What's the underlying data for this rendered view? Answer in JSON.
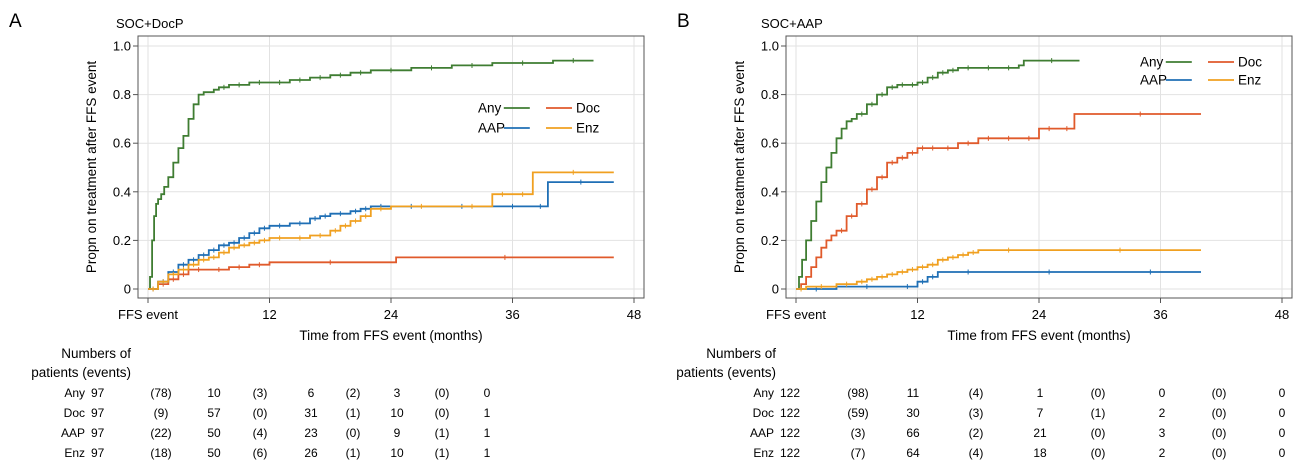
{
  "colors": {
    "Any": "#3f7d32",
    "Doc": "#e05a2b",
    "AAP": "#1f6fb5",
    "Enz": "#f0a020"
  },
  "chart_data": [
    {
      "type": "line",
      "panel_label": "A",
      "title": "SOC+DocP",
      "xlabel": "Time from FFS event (months)",
      "ylabel": "Propn on treatment after FFS event",
      "xlim": [
        0,
        48
      ],
      "ylim": [
        0,
        1.0
      ],
      "xticks": [
        0,
        12,
        24,
        36,
        48
      ],
      "xtick_labels": [
        "FFS event",
        "12",
        "24",
        "36",
        "48"
      ],
      "yticks": [
        0,
        0.2,
        0.4,
        0.6,
        0.8,
        1.0
      ],
      "ytick_labels": [
        "0",
        "0.2",
        "0.4",
        "0.6",
        "0.8",
        "1.0"
      ],
      "grid": true,
      "legend_position": "right",
      "legend_order": [
        "Any",
        "Doc",
        "AAP",
        "Enz"
      ],
      "series": [
        {
          "name": "Any",
          "step": true,
          "x": [
            0,
            0.2,
            0.4,
            0.6,
            0.8,
            1.0,
            1.3,
            1.6,
            2.0,
            2.5,
            3.0,
            3.5,
            4.0,
            4.5,
            5.0,
            5.5,
            6.0,
            6.5,
            7.0,
            8.0,
            10.0,
            12.0,
            14.0,
            16.0,
            18.0,
            20.0,
            22.0,
            26.0,
            30.0,
            34.0,
            40.0,
            44.0
          ],
          "y": [
            0,
            0.05,
            0.2,
            0.3,
            0.35,
            0.37,
            0.39,
            0.42,
            0.46,
            0.52,
            0.58,
            0.63,
            0.7,
            0.76,
            0.8,
            0.81,
            0.81,
            0.82,
            0.83,
            0.84,
            0.85,
            0.85,
            0.86,
            0.87,
            0.88,
            0.89,
            0.9,
            0.91,
            0.92,
            0.93,
            0.94,
            0.94
          ]
        },
        {
          "name": "Doc",
          "step": true,
          "x": [
            0,
            1.0,
            2.0,
            3.0,
            4.0,
            6.0,
            8.0,
            10.0,
            12.0,
            24.0,
            24.5,
            46.0
          ],
          "y": [
            0,
            0.02,
            0.04,
            0.06,
            0.08,
            0.08,
            0.09,
            0.1,
            0.11,
            0.11,
            0.13,
            0.13
          ]
        },
        {
          "name": "AAP",
          "step": true,
          "x": [
            0,
            1.0,
            2.0,
            3.0,
            4.0,
            5.0,
            6.0,
            7.0,
            8.0,
            9.0,
            10.0,
            11.0,
            12.0,
            14.0,
            16.0,
            17.0,
            18.0,
            20.0,
            21.0,
            22.0,
            24.0,
            28.0,
            34.0,
            38.0,
            39.5,
            46.0
          ],
          "y": [
            0,
            0.03,
            0.07,
            0.1,
            0.12,
            0.14,
            0.16,
            0.18,
            0.19,
            0.21,
            0.23,
            0.25,
            0.26,
            0.27,
            0.29,
            0.3,
            0.31,
            0.32,
            0.33,
            0.34,
            0.34,
            0.34,
            0.34,
            0.34,
            0.44,
            0.44
          ]
        },
        {
          "name": "Enz",
          "step": true,
          "x": [
            0,
            1.0,
            2.0,
            3.0,
            4.0,
            5.0,
            6.0,
            7.0,
            8.0,
            9.0,
            10.0,
            11.0,
            12.0,
            14.0,
            16.0,
            18.0,
            19.0,
            20.0,
            21.0,
            22.0,
            24.0,
            30.0,
            34.0,
            36.0,
            38.0,
            46.0
          ],
          "y": [
            0,
            0.03,
            0.06,
            0.08,
            0.1,
            0.12,
            0.13,
            0.15,
            0.17,
            0.18,
            0.19,
            0.2,
            0.21,
            0.21,
            0.22,
            0.24,
            0.26,
            0.28,
            0.3,
            0.33,
            0.34,
            0.34,
            0.39,
            0.39,
            0.48,
            0.48
          ]
        }
      ],
      "risk_table": {
        "heading_line1": "Numbers of",
        "heading_line2": "patients (events)",
        "rows": [
          {
            "label": "Any",
            "cells": [
              "97",
              "(78)",
              "10",
              "(3)",
              "6",
              "(2)",
              "3",
              "(0)",
              "0"
            ]
          },
          {
            "label": "Doc",
            "cells": [
              "97",
              "(9)",
              "57",
              "(0)",
              "31",
              "(1)",
              "10",
              "(0)",
              "1"
            ]
          },
          {
            "label": "AAP",
            "cells": [
              "97",
              "(22)",
              "50",
              "(4)",
              "23",
              "(0)",
              "9",
              "(1)",
              "1"
            ]
          },
          {
            "label": "Enz",
            "cells": [
              "97",
              "(18)",
              "50",
              "(6)",
              "26",
              "(1)",
              "10",
              "(1)",
              "1"
            ]
          }
        ]
      }
    },
    {
      "type": "line",
      "panel_label": "B",
      "title": "SOC+AAP",
      "xlabel": "Time from FFS event (months)",
      "ylabel": "Propn on treatment after FFS event",
      "xlim": [
        0,
        48
      ],
      "ylim": [
        0,
        1.0
      ],
      "xticks": [
        0,
        12,
        24,
        36,
        48
      ],
      "xtick_labels": [
        "FFS event",
        "12",
        "24",
        "36",
        "48"
      ],
      "yticks": [
        0,
        0.2,
        0.4,
        0.6,
        0.8,
        1.0
      ],
      "ytick_labels": [
        "0",
        "0.2",
        "0.4",
        "0.6",
        "0.8",
        "1.0"
      ],
      "grid": true,
      "legend_position": "top-right",
      "legend_order": [
        "Any",
        "Doc",
        "AAP",
        "Enz"
      ],
      "series": [
        {
          "name": "Any",
          "step": true,
          "x": [
            0,
            0.3,
            0.6,
            1.0,
            1.5,
            2.0,
            2.5,
            3.0,
            3.5,
            4.0,
            4.5,
            5.0,
            5.5,
            6.0,
            7.0,
            8.0,
            9.0,
            10.0,
            11.0,
            12.0,
            13.0,
            14.0,
            15.0,
            16.0,
            18.0,
            20.0,
            22.0,
            22.5,
            28.0
          ],
          "y": [
            0,
            0.05,
            0.12,
            0.2,
            0.28,
            0.36,
            0.44,
            0.5,
            0.56,
            0.62,
            0.66,
            0.69,
            0.7,
            0.72,
            0.76,
            0.8,
            0.83,
            0.84,
            0.84,
            0.85,
            0.87,
            0.89,
            0.9,
            0.91,
            0.91,
            0.91,
            0.92,
            0.94,
            0.94
          ]
        },
        {
          "name": "Doc",
          "step": true,
          "x": [
            0,
            0.5,
            1.0,
            1.5,
            2.0,
            2.5,
            3.0,
            3.5,
            4.0,
            5.0,
            6.0,
            7.0,
            8.0,
            9.0,
            10.0,
            11.0,
            12.0,
            13.0,
            14.0,
            16.0,
            18.0,
            20.0,
            22.0,
            24.0,
            26.0,
            27.5,
            28.0,
            40.0
          ],
          "y": [
            0,
            0.02,
            0.05,
            0.09,
            0.13,
            0.17,
            0.2,
            0.22,
            0.24,
            0.3,
            0.35,
            0.41,
            0.46,
            0.52,
            0.54,
            0.56,
            0.58,
            0.58,
            0.58,
            0.6,
            0.62,
            0.62,
            0.62,
            0.66,
            0.66,
            0.72,
            0.72,
            0.72
          ]
        },
        {
          "name": "AAP",
          "step": true,
          "x": [
            0,
            4.0,
            10.0,
            12.0,
            13.0,
            14.0,
            20.0,
            30.0,
            40.0
          ],
          "y": [
            0,
            0.01,
            0.01,
            0.03,
            0.05,
            0.07,
            0.07,
            0.07,
            0.07
          ]
        },
        {
          "name": "Enz",
          "step": true,
          "x": [
            0,
            1.0,
            4.0,
            6.0,
            7.0,
            8.0,
            9.0,
            10.0,
            11.0,
            12.0,
            13.0,
            14.0,
            15.0,
            16.0,
            17.0,
            18.0,
            24.0,
            40.0
          ],
          "y": [
            0,
            0.01,
            0.02,
            0.03,
            0.04,
            0.05,
            0.06,
            0.07,
            0.08,
            0.09,
            0.1,
            0.12,
            0.13,
            0.14,
            0.15,
            0.16,
            0.16,
            0.16
          ]
        }
      ],
      "risk_table": {
        "heading_line1": "Numbers of",
        "heading_line2": "patients (events)",
        "rows": [
          {
            "label": "Any",
            "cells": [
              "122",
              "(98)",
              "11",
              "(4)",
              "1",
              "(0)",
              "0",
              "(0)",
              "0"
            ]
          },
          {
            "label": "Doc",
            "cells": [
              "122",
              "(59)",
              "30",
              "(3)",
              "7",
              "(1)",
              "2",
              "(0)",
              "0"
            ]
          },
          {
            "label": "AAP",
            "cells": [
              "122",
              "(3)",
              "66",
              "(2)",
              "21",
              "(0)",
              "3",
              "(0)",
              "0"
            ]
          },
          {
            "label": "Enz",
            "cells": [
              "122",
              "(7)",
              "64",
              "(4)",
              "18",
              "(0)",
              "2",
              "(0)",
              "0"
            ]
          }
        ]
      }
    }
  ]
}
